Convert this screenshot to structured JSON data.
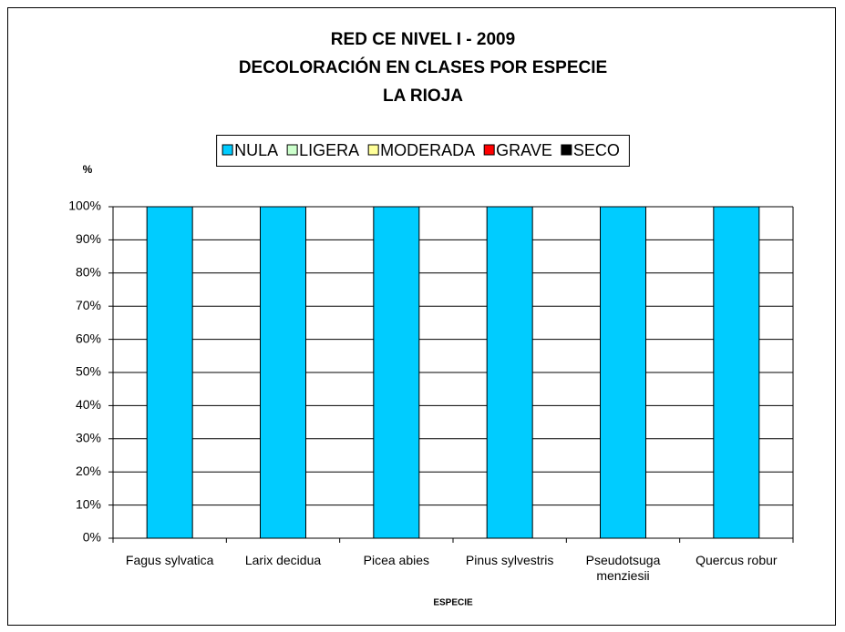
{
  "chart_data": {
    "type": "stacked_bar",
    "title": [
      "RED CE NIVEL I - 2009",
      "DECOLORACIÓN EN CLASES POR ESPECIE",
      "LA RIOJA"
    ],
    "y_label": "%",
    "x_label": "ESPECIE",
    "categories": [
      "Fagus sylvatica",
      "Larix decidua",
      "Picea abies",
      "Pinus sylvestris",
      "Pseudotsuga menziesii",
      "Quercus robur"
    ],
    "series": [
      {
        "name": "NULA",
        "color": "#00ccff",
        "values": [
          100,
          100,
          100,
          100,
          100,
          100
        ]
      },
      {
        "name": "LIGERA",
        "color": "#ccffcc",
        "values": [
          0,
          0,
          0,
          0,
          0,
          0
        ]
      },
      {
        "name": "MODERADA",
        "color": "#ffff99",
        "values": [
          0,
          0,
          0,
          0,
          0,
          0
        ]
      },
      {
        "name": "GRAVE",
        "color": "#ff0000",
        "values": [
          0,
          0,
          0,
          0,
          0,
          0
        ]
      },
      {
        "name": "SECO",
        "color": "#000000",
        "values": [
          0,
          0,
          0,
          0,
          0,
          0
        ]
      }
    ],
    "ylim": [
      0,
      100
    ],
    "yticks": [
      {
        "value": 0,
        "label": "0%"
      },
      {
        "value": 10,
        "label": "10%"
      },
      {
        "value": 20,
        "label": "20%"
      },
      {
        "value": 30,
        "label": "30%"
      },
      {
        "value": 40,
        "label": "40%"
      },
      {
        "value": 50,
        "label": "50%"
      },
      {
        "value": 60,
        "label": "60%"
      },
      {
        "value": 70,
        "label": "70%"
      },
      {
        "value": 80,
        "label": "80%"
      },
      {
        "value": 90,
        "label": "90%"
      },
      {
        "value": 100,
        "label": "100%"
      }
    ],
    "grid": true,
    "legend": "top"
  }
}
